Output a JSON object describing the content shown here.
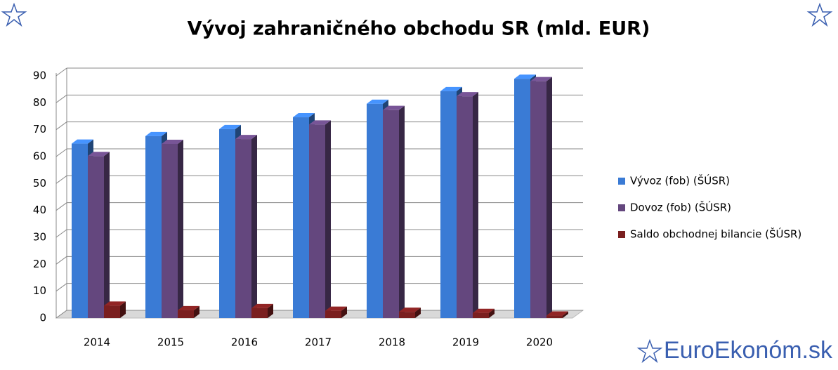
{
  "chart_data": {
    "type": "bar3d",
    "title": "Vývoj zahraničného obchodu SR (mld. EUR)",
    "categories": [
      "2014",
      "2015",
      "2016",
      "2017",
      "2018",
      "2019",
      "2020"
    ],
    "series": [
      {
        "name": "Vývoz (fob) (ŠÚSR)",
        "color": "#3a7bd5",
        "values": [
          64.8,
          67.6,
          70.2,
          74.6,
          79.6,
          84.3,
          88.9
        ]
      },
      {
        "name": "Dovoz (fob)  (ŠÚSR)",
        "color": "#64477e",
        "values": [
          60.2,
          64.7,
          66.5,
          71.9,
          77.3,
          82.4,
          88.0
        ]
      },
      {
        "name": "Saldo obchodnej bilancie (ŠÚSR)",
        "color": "#7a1f1f",
        "values": [
          4.6,
          2.9,
          3.7,
          2.7,
          2.3,
          1.9,
          0.9
        ]
      }
    ],
    "ylim": [
      0,
      90
    ],
    "yticks": [
      0,
      10,
      20,
      30,
      40,
      50,
      60,
      70,
      80,
      90
    ],
    "grid": true,
    "legend": "right",
    "watermark": "EuroEkonóm.sk"
  }
}
